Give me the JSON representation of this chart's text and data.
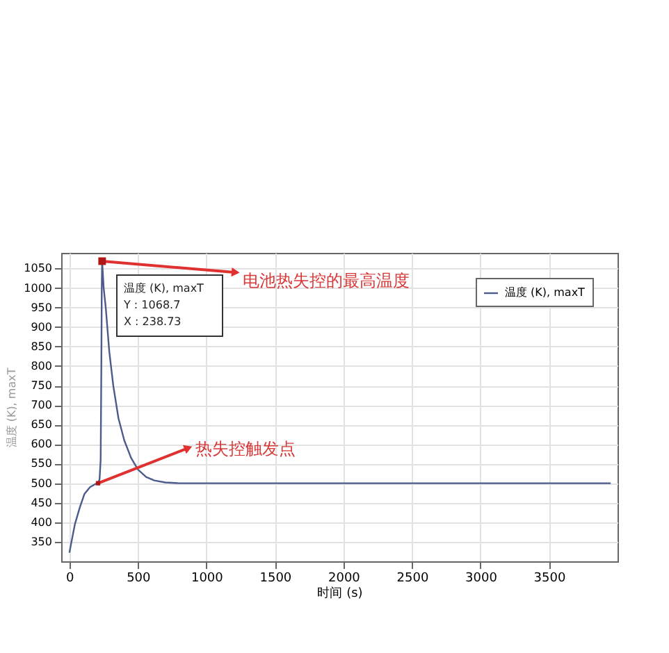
{
  "chart_data": {
    "type": "line",
    "xlabel": "时间 (s)",
    "ylabel": "温度 (K), maxT",
    "x": [
      0,
      15,
      40,
      76,
      109,
      150,
      190,
      209,
      220,
      228,
      233,
      236,
      238.73,
      250,
      265,
      291,
      320,
      358,
      400,
      450,
      500,
      560,
      620,
      700,
      800,
      900,
      2000,
      3950
    ],
    "series": [
      {
        "name": "温度 (K), maxT",
        "color": "#4b5b8c",
        "values": [
          322,
          350,
          395,
          438,
          472,
          490,
          498,
          500,
          510,
          560,
          800,
          1000,
          1068.7,
          1000,
          950,
          837,
          750,
          666,
          610,
          565,
          535,
          516,
          507,
          502,
          500,
          500,
          500,
          500
        ]
      }
    ],
    "xlim": [
      -60,
      4000
    ],
    "xticks": [
      0,
      500,
      1000,
      1500,
      2000,
      2500,
      3000,
      3500
    ],
    "ylim": [
      300,
      1090
    ],
    "yticks": [
      350,
      400,
      450,
      500,
      550,
      600,
      650,
      700,
      750,
      800,
      850,
      900,
      950,
      1000,
      1050
    ],
    "grid": true,
    "legend": "top right",
    "marker": "none",
    "line_style": "solid",
    "annotations": [
      {
        "text": "电池热失控的最高温度",
        "x": 238.73,
        "y": 1068.7
      },
      {
        "text": "热失控触发点",
        "x": 209,
        "y": 500
      },
      "温度 (K), maxT",
      "Y : 1068.7",
      "X : 238.73"
    ]
  }
}
